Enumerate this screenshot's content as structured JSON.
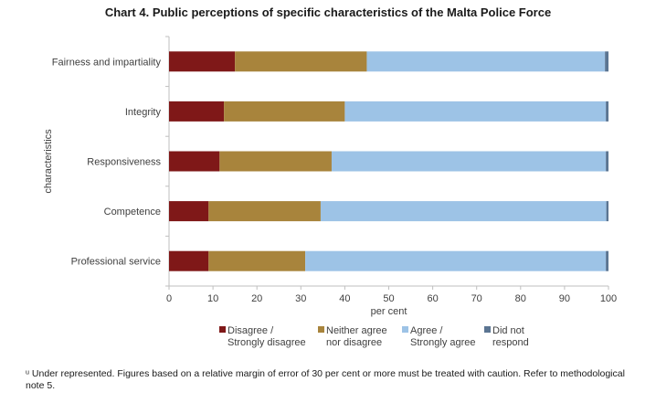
{
  "chart_data": {
    "type": "bar",
    "orientation": "horizontal",
    "stacked": true,
    "title": "Chart 4. Public perceptions of specific characteristics of the Malta Police Force",
    "xlabel": "per cent",
    "ylabel": "characteristics",
    "xlim": [
      0,
      100
    ],
    "xticks": [
      "0",
      "10",
      "20",
      "30",
      "40",
      "50",
      "60",
      "70",
      "80",
      "90",
      "100"
    ],
    "categories": [
      "Fairness and impartiality",
      "Integrity",
      "Responsiveness",
      "Competence",
      "Professional service"
    ],
    "series": [
      {
        "name": "Disagree / Strongly disagree",
        "legend_lines": [
          "Disagree /",
          "Strongly disagree"
        ],
        "color": "#7f1818",
        "values": [
          15,
          12.5,
          11.5,
          9,
          9
        ]
      },
      {
        "name": "Neither agree nor disagree",
        "legend_lines": [
          "Neither agree",
          "nor disagree"
        ],
        "color": "#a8843c",
        "values": [
          30,
          27.5,
          25.5,
          25.5,
          22
        ]
      },
      {
        "name": "Agree / Strongly agree",
        "legend_lines": [
          "Agree /",
          "Strongly agree"
        ],
        "color": "#9dc3e6",
        "values": [
          54.2,
          59.4,
          62.4,
          65,
          68.4
        ]
      },
      {
        "name": "Did not respond",
        "legend_lines": [
          "Did not",
          "respond"
        ],
        "color": "#5b7592",
        "values": [
          0.8,
          0.6,
          0.6,
          0.5,
          0.6
        ]
      }
    ],
    "legend_position": "bottom",
    "grid": false
  },
  "footnote": "ᵘ Under represented. Figures based on a relative margin of error of 30 per cent or more must be treated with caution. Refer to methodological note 5."
}
